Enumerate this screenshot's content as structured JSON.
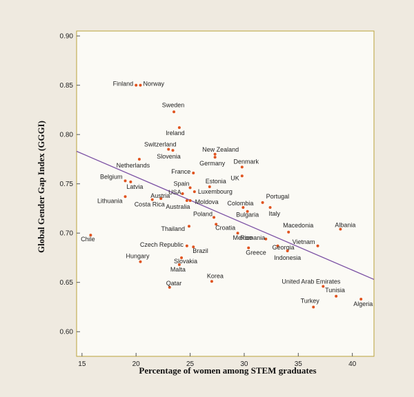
{
  "chart_data": {
    "type": "scatter",
    "xlabel": "Percentage of women among STEM graduates",
    "ylabel": "Global Gender Gap Index (GGGI)",
    "xlim": [
      14.5,
      42
    ],
    "ylim": [
      0.575,
      0.905
    ],
    "xticks": [
      15,
      20,
      25,
      30,
      35,
      40
    ],
    "yticks": [
      0.6,
      0.65,
      0.7,
      0.75,
      0.8,
      0.85,
      0.9
    ],
    "ytick_labels": [
      "0.60",
      "0.65",
      "0.70",
      "0.75",
      "0.80",
      "0.85",
      "0.90"
    ],
    "grid": false,
    "marker_color": "#e0531f",
    "line_color": "#7a4fa3",
    "trendline": {
      "x": [
        14.5,
        42
      ],
      "y": [
        0.783,
        0.653
      ]
    },
    "points": [
      {
        "label": "Finland",
        "x": 20.0,
        "y": 0.85
      },
      {
        "label": "Norway",
        "x": 20.4,
        "y": 0.85
      },
      {
        "label": "Sweden",
        "x": 23.5,
        "y": 0.823
      },
      {
        "label": "Ireland",
        "x": 24.0,
        "y": 0.807
      },
      {
        "label": "Switzerland",
        "x": 23.0,
        "y": 0.785
      },
      {
        "label": "Slovenia",
        "x": 23.4,
        "y": 0.784
      },
      {
        "label": "Netherlands",
        "x": 20.3,
        "y": 0.775
      },
      {
        "label": "New Zealand",
        "x": 27.3,
        "y": 0.78
      },
      {
        "label": "Germany",
        "x": 27.3,
        "y": 0.777
      },
      {
        "label": "Denmark",
        "x": 29.8,
        "y": 0.767
      },
      {
        "label": "France",
        "x": 25.3,
        "y": 0.761
      },
      {
        "label": "Estonia",
        "x": 26.8,
        "y": 0.747
      },
      {
        "label": "UK",
        "x": 29.8,
        "y": 0.758
      },
      {
        "label": "Belgium",
        "x": 19.0,
        "y": 0.753
      },
      {
        "label": "Latvia",
        "x": 19.5,
        "y": 0.752
      },
      {
        "label": "Spain",
        "x": 25.0,
        "y": 0.746
      },
      {
        "label": "Luxembourg",
        "x": 25.4,
        "y": 0.742
      },
      {
        "label": "Portugal",
        "x": 31.7,
        "y": 0.731
      },
      {
        "label": "Austria",
        "x": 22.3,
        "y": 0.735
      },
      {
        "label": "USA",
        "x": 24.3,
        "y": 0.74
      },
      {
        "label": "Lithuania",
        "x": 19.0,
        "y": 0.737
      },
      {
        "label": "Costa Rica",
        "x": 21.5,
        "y": 0.734
      },
      {
        "label": "Moldova",
        "x": 25.0,
        "y": 0.733
      },
      {
        "label": "Australia",
        "x": 24.7,
        "y": 0.733
      },
      {
        "label": "Colombia",
        "x": 29.9,
        "y": 0.726
      },
      {
        "label": "Italy",
        "x": 32.4,
        "y": 0.726
      },
      {
        "label": "Bulgaria",
        "x": 30.3,
        "y": 0.722
      },
      {
        "label": "Poland",
        "x": 27.2,
        "y": 0.716
      },
      {
        "label": "Macedonia",
        "x": 34.1,
        "y": 0.701
      },
      {
        "label": "Albania",
        "x": 38.9,
        "y": 0.704
      },
      {
        "label": "Thailand",
        "x": 24.9,
        "y": 0.707
      },
      {
        "label": "Croatia",
        "x": 27.4,
        "y": 0.709
      },
      {
        "label": "Romania",
        "x": 32.0,
        "y": 0.694
      },
      {
        "label": "Chile",
        "x": 15.8,
        "y": 0.698
      },
      {
        "label": "Mexico",
        "x": 29.4,
        "y": 0.7
      },
      {
        "label": "Vietnam",
        "x": 36.8,
        "y": 0.687
      },
      {
        "label": "Czech Republic",
        "x": 24.7,
        "y": 0.687
      },
      {
        "label": "Brazil",
        "x": 25.3,
        "y": 0.686
      },
      {
        "label": "Greece",
        "x": 30.4,
        "y": 0.685
      },
      {
        "label": "Georgia",
        "x": 33.1,
        "y": 0.687
      },
      {
        "label": "Hungary",
        "x": 20.4,
        "y": 0.671
      },
      {
        "label": "Indonesia",
        "x": 34.0,
        "y": 0.682
      },
      {
        "label": "Slovakia",
        "x": 24.2,
        "y": 0.675
      },
      {
        "label": "Malta",
        "x": 24.0,
        "y": 0.668
      },
      {
        "label": "Korea",
        "x": 27.0,
        "y": 0.651
      },
      {
        "label": "Qatar",
        "x": 23.1,
        "y": 0.645
      },
      {
        "label": "United Arab Emirates",
        "x": 37.3,
        "y": 0.646
      },
      {
        "label": "Tunisia",
        "x": 38.5,
        "y": 0.636
      },
      {
        "label": "Algeria",
        "x": 40.8,
        "y": 0.633
      },
      {
        "label": "Turkey",
        "x": 36.4,
        "y": 0.625
      }
    ]
  }
}
